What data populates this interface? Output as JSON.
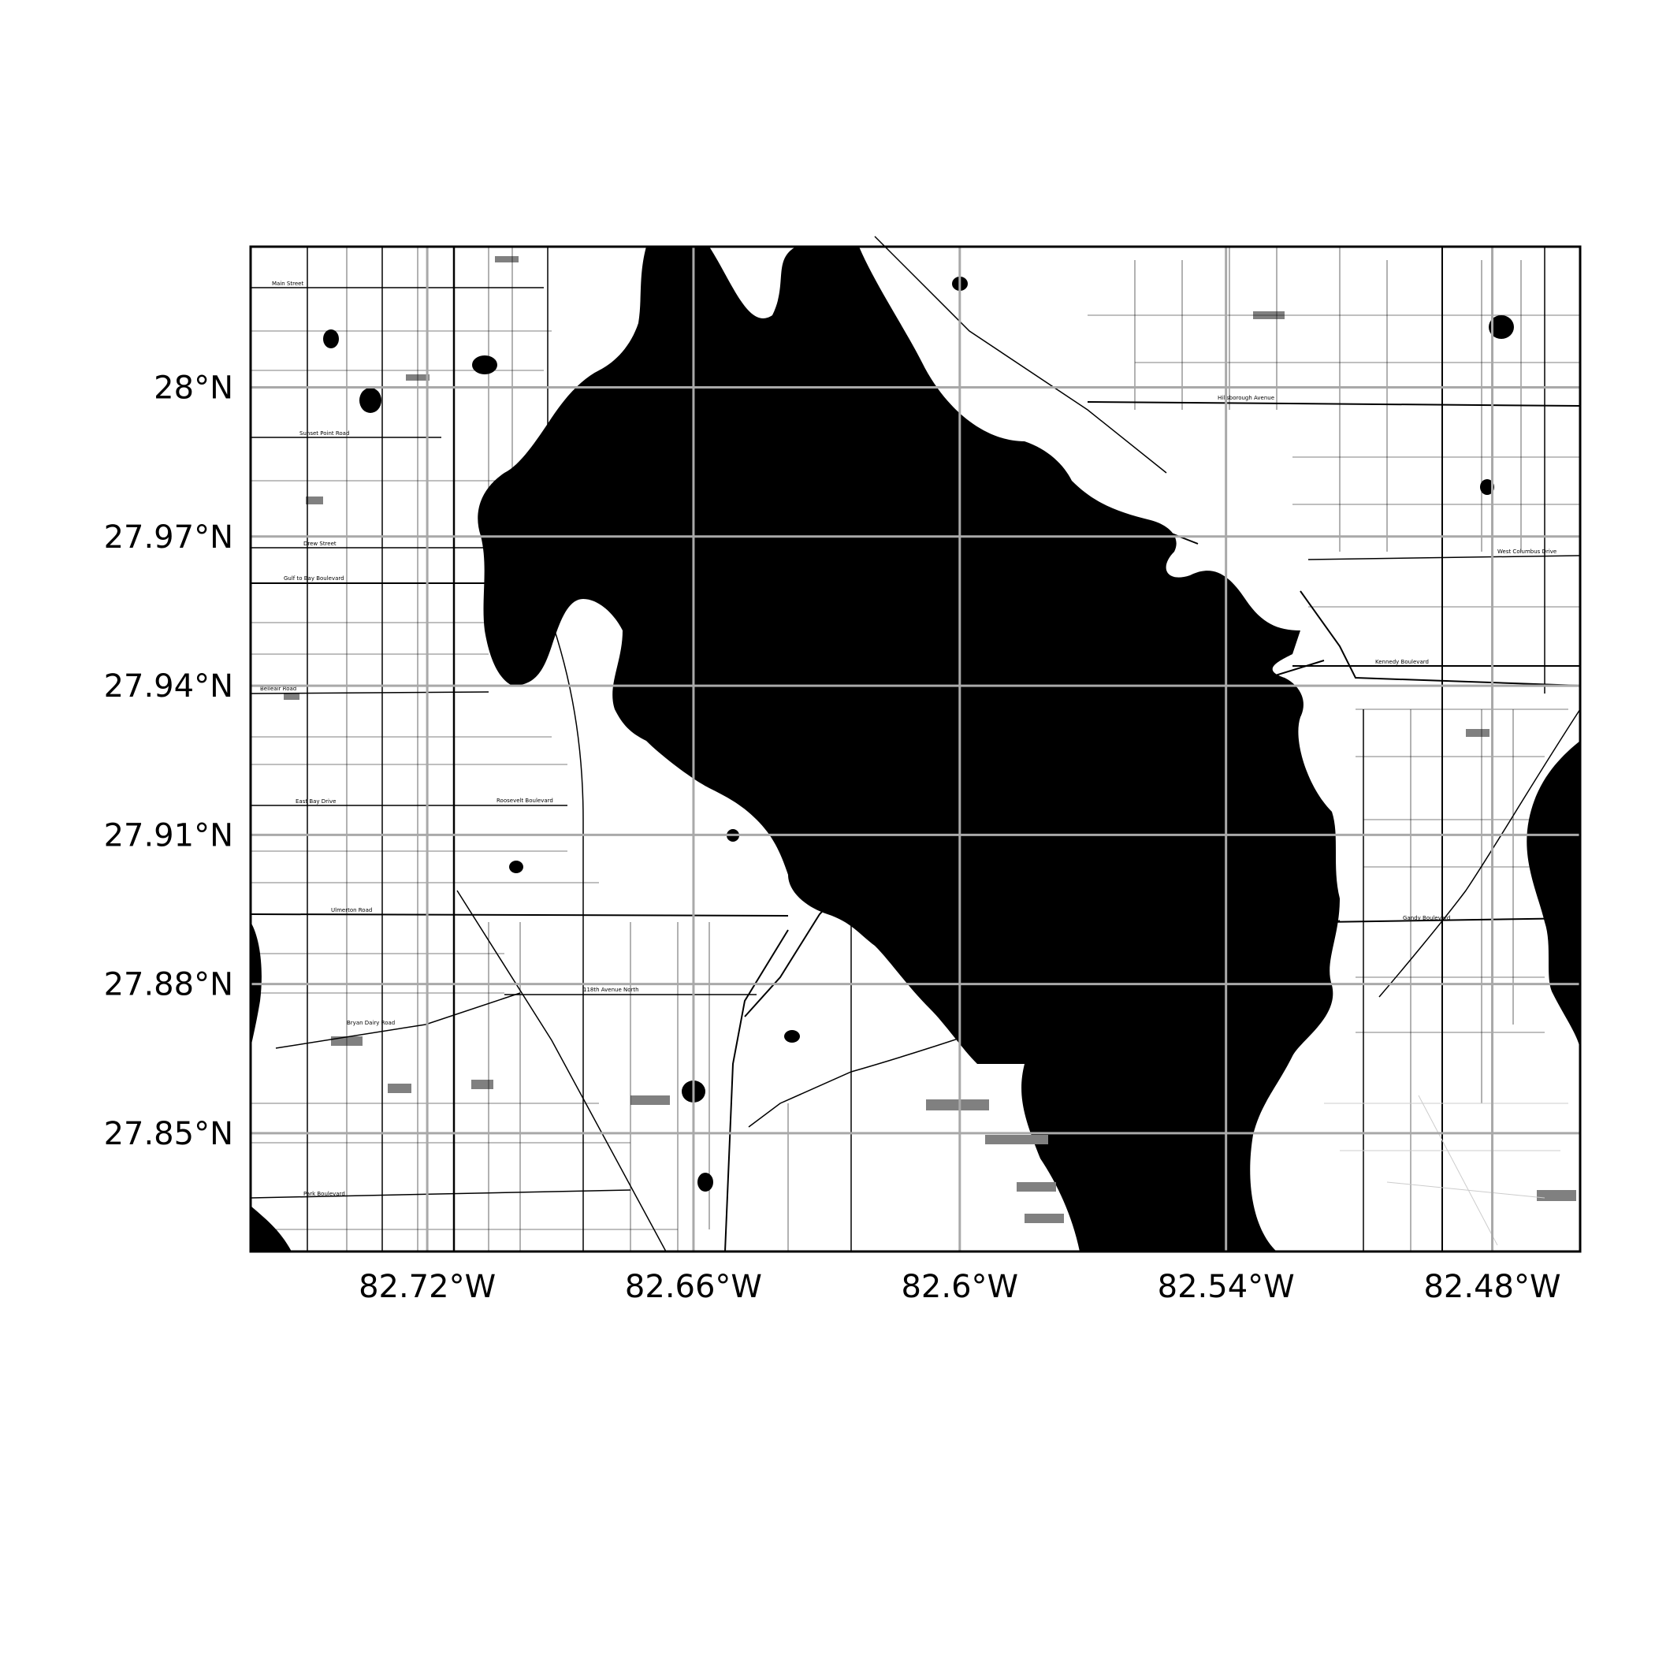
{
  "map": {
    "lat_ticks": [
      {
        "lat": 28.0,
        "label": "28°N"
      },
      {
        "lat": 27.97,
        "label": "27.97°N"
      },
      {
        "lat": 27.94,
        "label": "27.94°N"
      },
      {
        "lat": 27.91,
        "label": "27.91°N"
      },
      {
        "lat": 27.88,
        "label": "27.88°N"
      },
      {
        "lat": 27.85,
        "label": "27.85°N"
      }
    ],
    "lon_ticks": [
      {
        "lon": -82.72,
        "label": "82.72°W"
      },
      {
        "lon": -82.66,
        "label": "82.66°W"
      },
      {
        "lon": -82.6,
        "label": "82.6°W"
      },
      {
        "lon": -82.54,
        "label": "82.54°W"
      },
      {
        "lon": -82.48,
        "label": "82.48°W"
      }
    ],
    "extent": {
      "lon_min": -82.7598,
      "lon_max": -82.4602,
      "lat_min": 27.8262,
      "lat_max": 28.0283
    },
    "colors": {
      "water": "#000000",
      "land": "#ffffff",
      "gridline": "#a9a9a9",
      "frame": "#000000",
      "roads": "#000000",
      "parks": "#808080"
    },
    "road_labels": [
      "Main Street",
      "Sunset Point Road",
      "Drew Street",
      "Gulf to Bay Boulevard",
      "Belleair Road",
      "East Bay Drive",
      "Ulmerton Road",
      "Bryan Dairy Road",
      "Park Boulevard",
      "118th Avenue North",
      "Hillsborough Avenue",
      "Kennedy Boulevard",
      "West Columbus Drive",
      "Gandy Boulevard",
      "Roosevelt Boulevard"
    ]
  }
}
